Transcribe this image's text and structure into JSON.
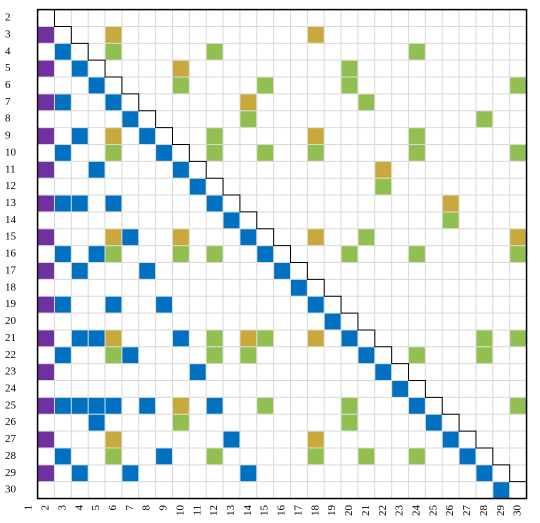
{
  "chart_data": {
    "type": "matrix",
    "x_labels": [
      1,
      2,
      3,
      4,
      5,
      6,
      7,
      8,
      9,
      10,
      11,
      12,
      13,
      14,
      15,
      16,
      17,
      18,
      19,
      20,
      21,
      22,
      23,
      24,
      25,
      26,
      27,
      28,
      29,
      30
    ],
    "y_labels": [
      2,
      3,
      4,
      5,
      6,
      7,
      8,
      9,
      10,
      11,
      12,
      13,
      14,
      15,
      16,
      17,
      18,
      19,
      20,
      21,
      22,
      23,
      24,
      25,
      26,
      27,
      28,
      29,
      30
    ],
    "series": [
      {
        "color": "#7030a0",
        "x": [
          2,
          2,
          2,
          2,
          2,
          2,
          2,
          2,
          2,
          2,
          2,
          2,
          2,
          2
        ],
        "y": [
          3,
          5,
          7,
          9,
          11,
          13,
          15,
          17,
          19,
          21,
          23,
          25,
          27,
          29
        ]
      },
      {
        "color": "#0070c0",
        "x": [
          3,
          4,
          5,
          3,
          6,
          7,
          4,
          8,
          3,
          9,
          5,
          10,
          11,
          3,
          4,
          6,
          12,
          13,
          7,
          14,
          3,
          5,
          15,
          4,
          8,
          16,
          17,
          3,
          6,
          9,
          18,
          19,
          4,
          5,
          10,
          20,
          3,
          7,
          21,
          11,
          22,
          23,
          3,
          4,
          5,
          6,
          8,
          12,
          24,
          5,
          25,
          13,
          26,
          3,
          9,
          27,
          4,
          7,
          14,
          28,
          29
        ],
        "y": [
          4,
          5,
          6,
          7,
          7,
          8,
          9,
          9,
          10,
          10,
          11,
          11,
          12,
          13,
          13,
          13,
          13,
          14,
          15,
          15,
          16,
          16,
          16,
          17,
          17,
          17,
          18,
          19,
          19,
          19,
          19,
          20,
          21,
          21,
          21,
          21,
          22,
          22,
          22,
          23,
          23,
          24,
          25,
          25,
          25,
          25,
          25,
          25,
          25,
          26,
          26,
          27,
          27,
          28,
          28,
          28,
          29,
          29,
          29,
          29,
          30
        ]
      },
      {
        "color": "#c9a83c",
        "x": [
          6,
          18,
          10,
          14,
          6,
          18,
          22,
          26,
          6,
          10,
          18,
          30,
          6,
          14,
          18,
          10,
          6,
          18
        ],
        "y": [
          3,
          3,
          5,
          7,
          9,
          9,
          11,
          13,
          15,
          15,
          15,
          15,
          21,
          21,
          21,
          25,
          27,
          27
        ]
      },
      {
        "color": "#92c050",
        "x": [
          6,
          12,
          24,
          20,
          10,
          15,
          20,
          30,
          21,
          14,
          28,
          12,
          24,
          6,
          12,
          15,
          18,
          24,
          30,
          22,
          26,
          21,
          6,
          10,
          12,
          20,
          24,
          30,
          12,
          15,
          28,
          30,
          6,
          12,
          14,
          24,
          28,
          15,
          20,
          30,
          10,
          20,
          6,
          12,
          18,
          21,
          24
        ],
        "y": [
          4,
          4,
          4,
          5,
          6,
          6,
          6,
          6,
          7,
          8,
          8,
          9,
          9,
          10,
          10,
          10,
          10,
          10,
          10,
          12,
          14,
          15,
          16,
          16,
          16,
          16,
          16,
          16,
          21,
          21,
          21,
          21,
          22,
          22,
          22,
          22,
          22,
          25,
          25,
          25,
          26,
          26,
          28,
          28,
          28,
          28,
          28
        ]
      }
    ]
  }
}
